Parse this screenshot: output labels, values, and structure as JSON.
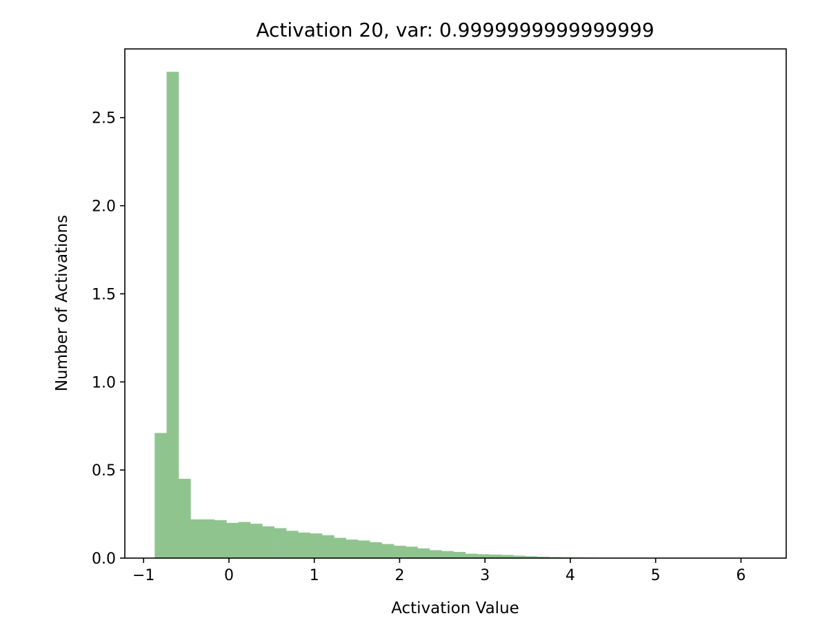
{
  "chart_data": {
    "type": "bar",
    "title": "Activation 20, var: 0.9999999999999999",
    "xlabel": "Activation Value",
    "ylabel": "Number of Activations",
    "xlim": [
      -1.22,
      6.53
    ],
    "ylim": [
      0,
      2.89
    ],
    "xticks": [
      -1,
      0,
      1,
      2,
      3,
      4,
      5,
      6
    ],
    "xtick_labels": [
      "−1",
      "0",
      "1",
      "2",
      "3",
      "4",
      "5",
      "6"
    ],
    "yticks": [
      0.0,
      0.5,
      1.0,
      1.5,
      2.0,
      2.5
    ],
    "ytick_labels": [
      "0.0",
      "0.5",
      "1.0",
      "1.5",
      "2.0",
      "2.5"
    ],
    "bin_start": -0.87,
    "bin_width": 0.14,
    "values": [
      0.71,
      2.76,
      0.45,
      0.22,
      0.22,
      0.215,
      0.2,
      0.205,
      0.195,
      0.18,
      0.17,
      0.155,
      0.145,
      0.14,
      0.13,
      0.115,
      0.105,
      0.1,
      0.09,
      0.08,
      0.07,
      0.065,
      0.055,
      0.045,
      0.04,
      0.035,
      0.025,
      0.022,
      0.02,
      0.018,
      0.014,
      0.011,
      0.008,
      0.006,
      0.005,
      0.004,
      0.003,
      0.002,
      0.0015,
      0.001,
      0.001,
      0.0008,
      0.0006,
      0.0005,
      0.0004,
      0.0003,
      0.0003,
      0.0002,
      0.0002,
      0.0001
    ],
    "bar_color": "#8fc48f",
    "grid": false,
    "legend": "none"
  }
}
